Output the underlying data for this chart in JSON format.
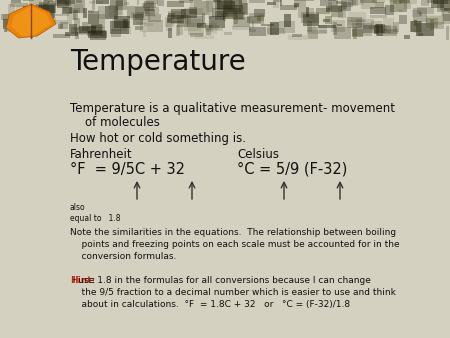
{
  "title": "Temperature",
  "bg_color": "#d4d1c0",
  "header_bg": "#3d3b2a",
  "sidebar_bg": "#4a4228",
  "leaf_bg": "#4a3e1e",
  "title_color": "#111111",
  "body_color": "#111111",
  "hint_color": "#cc2200",
  "line1": "Temperature is a qualitative measurement- movement",
  "line1b": "    of molecules",
  "line2": "How hot or cold something is.",
  "col1_head": "Fahrenheit",
  "col2_head": "Celsius",
  "formula1": "°F  = 9/5C + 32",
  "formula2": "°C = 5/9 (F-32)",
  "also_text": "also\nequal to   1.8",
  "note_text": "Note the similarities in the equations.  The relationship between boiling\n    points and freezing points on each scale must be accounted for in the\n    conversion formulas.",
  "hint_label": "Hint:",
  "hint_body": " I use 1.8 in the formulas for all conversions because I can change\n    the 9/5 fraction to a decimal number which is easier to use and think\n    about in calculations.  °F  = 1.8C + 32   or   °C = (F-32)/1.8",
  "fig_width": 4.5,
  "fig_height": 3.38,
  "dpi": 100
}
